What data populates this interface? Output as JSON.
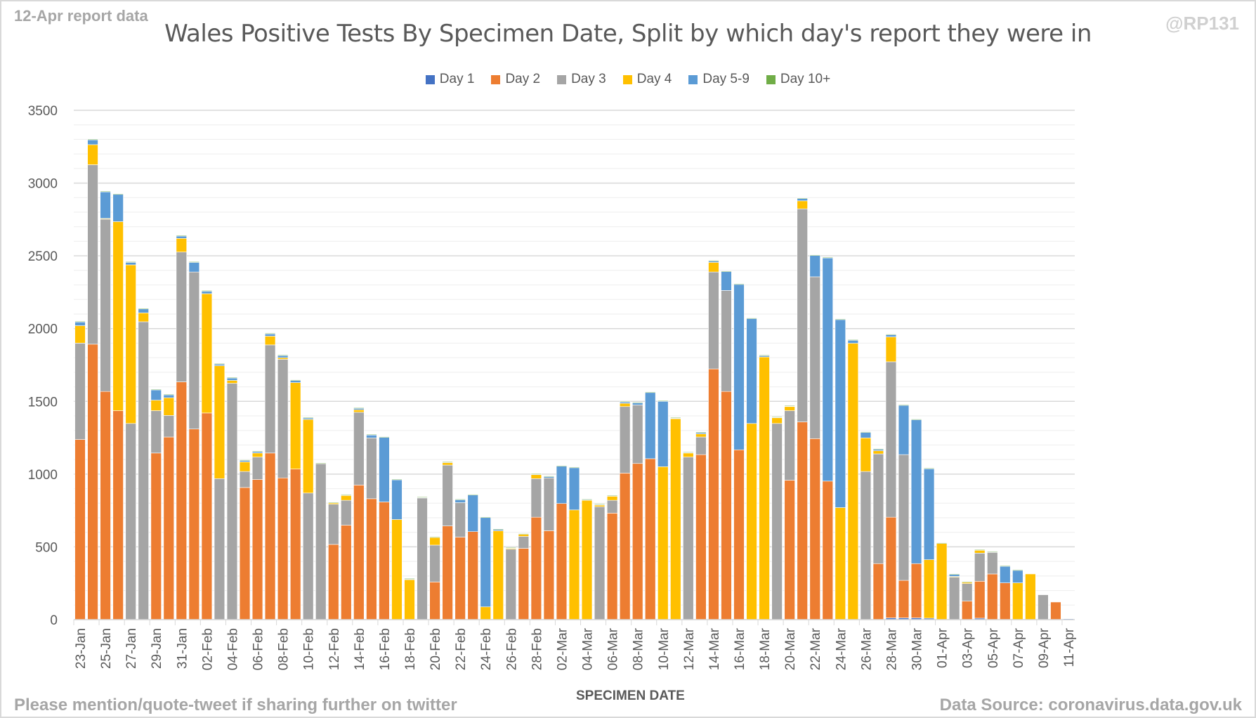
{
  "header": {
    "report_label": "12-Apr report data",
    "handle": "@RP131",
    "title": "Wales Positive Tests By Specimen Date, Split by which day's report they were in"
  },
  "footer": {
    "left": "Please mention/quote-tweet if sharing further on twitter",
    "right": "Data Source: coronavirus.data.gov.uk"
  },
  "colors": {
    "Day 1": "#4472c4",
    "Day 2": "#ed7d31",
    "Day 3": "#a5a5a5",
    "Day 4": "#ffc000",
    "Day 5-9": "#5b9bd5",
    "Day 10+": "#70ad47"
  },
  "chart_data": {
    "type": "bar",
    "stacked": true,
    "title": "Wales Positive Tests By Specimen Date, Split by which day's report they were in",
    "xlabel": "SPECIMEN DATE",
    "ylabel": "",
    "ylim": [
      0,
      3500
    ],
    "yticks": [
      0,
      500,
      1000,
      1500,
      2000,
      2500,
      3000,
      3500
    ],
    "grid": true,
    "legend_position": "top",
    "legend": [
      "Day 1",
      "Day 2",
      "Day 3",
      "Day 4",
      "Day 5-9",
      "Day 10+"
    ],
    "categories": [
      "23-Jan",
      "24-Jan",
      "25-Jan",
      "26-Jan",
      "27-Jan",
      "28-Jan",
      "29-Jan",
      "30-Jan",
      "31-Jan",
      "01-Feb",
      "02-Feb",
      "03-Feb",
      "04-Feb",
      "05-Feb",
      "06-Feb",
      "07-Feb",
      "08-Feb",
      "09-Feb",
      "10-Feb",
      "11-Feb",
      "12-Feb",
      "13-Feb",
      "14-Feb",
      "15-Feb",
      "16-Feb",
      "17-Feb",
      "18-Feb",
      "19-Feb",
      "20-Feb",
      "21-Feb",
      "22-Feb",
      "23-Feb",
      "24-Feb",
      "25-Feb",
      "26-Feb",
      "27-Feb",
      "28-Feb",
      "01-Mar",
      "02-Mar",
      "03-Mar",
      "04-Mar",
      "05-Mar",
      "06-Mar",
      "07-Mar",
      "08-Mar",
      "09-Mar",
      "10-Mar",
      "11-Mar",
      "12-Mar",
      "13-Mar",
      "14-Mar",
      "15-Mar",
      "16-Mar",
      "17-Mar",
      "18-Mar",
      "19-Mar",
      "20-Mar",
      "21-Mar",
      "22-Mar",
      "23-Mar",
      "24-Mar",
      "25-Mar",
      "26-Mar",
      "27-Mar",
      "28-Mar",
      "29-Mar",
      "30-Mar",
      "31-Mar",
      "01-Apr",
      "02-Apr",
      "03-Apr",
      "04-Apr",
      "05-Apr",
      "06-Apr",
      "07-Apr",
      "08-Apr",
      "09-Apr",
      "10-Apr",
      "11-Apr"
    ],
    "tick_labels": [
      "23-Jan",
      "25-Jan",
      "27-Jan",
      "29-Jan",
      "31-Jan",
      "02-Feb",
      "04-Feb",
      "06-Feb",
      "08-Feb",
      "10-Feb",
      "12-Feb",
      "14-Feb",
      "16-Feb",
      "18-Feb",
      "20-Feb",
      "22-Feb",
      "24-Feb",
      "26-Feb",
      "28-Feb",
      "02-Mar",
      "04-Mar",
      "06-Mar",
      "08-Mar",
      "10-Mar",
      "12-Mar",
      "14-Mar",
      "16-Mar",
      "18-Mar",
      "20-Mar",
      "22-Mar",
      "24-Mar",
      "26-Mar",
      "28-Mar",
      "30-Mar",
      "01-Apr",
      "03-Apr",
      "05-Apr",
      "07-Apr",
      "09-Apr",
      "11-Apr"
    ],
    "series": [
      {
        "name": "Day 1",
        "values": [
          0,
          0,
          0,
          0,
          0,
          0,
          0,
          0,
          0,
          0,
          0,
          0,
          0,
          0,
          0,
          0,
          0,
          0,
          0,
          0,
          0,
          0,
          0,
          0,
          0,
          0,
          0,
          0,
          0,
          0,
          0,
          0,
          0,
          0,
          0,
          0,
          0,
          0,
          0,
          0,
          0,
          0,
          0,
          0,
          0,
          0,
          0,
          0,
          0,
          0,
          0,
          0,
          0,
          0,
          0,
          0,
          0,
          0,
          0,
          0,
          0,
          0,
          0,
          0,
          12,
          12,
          12,
          10,
          0,
          0,
          0,
          10,
          0,
          0,
          0,
          0,
          0,
          0,
          6
        ]
      },
      {
        "name": "Day 2",
        "values": [
          1238,
          1893,
          1568,
          1436,
          0,
          0,
          1145,
          1255,
          1634,
          1310,
          1420,
          0,
          0,
          908,
          963,
          1145,
          974,
          1035,
          0,
          0,
          517,
          649,
          925,
          831,
          809,
          0,
          0,
          0,
          259,
          644,
          567,
          605,
          0,
          0,
          0,
          490,
          704,
          611,
          798,
          0,
          0,
          0,
          732,
          1007,
          1073,
          1106,
          0,
          0,
          0,
          1134,
          1723,
          1568,
          1167,
          0,
          0,
          0,
          958,
          1359,
          1244,
          952,
          0,
          0,
          0,
          385,
          692,
          258,
          373,
          0,
          0,
          0,
          127,
          254,
          314,
          253,
          0,
          0,
          0,
          121,
          0
        ]
      },
      {
        "name": "Day 3",
        "values": [
          662,
          1233,
          1184,
          0,
          1348,
          2047,
          291,
          148,
          892,
          1079,
          0,
          969,
          1624,
          110,
          154,
          743,
          815,
          0,
          870,
          1073,
          276,
          171,
          500,
          418,
          0,
          0,
          0,
          836,
          253,
          418,
          237,
          0,
          0,
          0,
          484,
          82,
          265,
          363,
          0,
          0,
          0,
          776,
          88,
          457,
          402,
          0,
          0,
          0,
          1117,
          121,
          666,
          694,
          0,
          0,
          0,
          1348,
          478,
          1464,
          1112,
          0,
          0,
          0,
          1018,
          754,
          1068,
          864,
          0,
          0,
          0,
          292,
          121,
          193,
          148,
          0,
          0,
          0,
          171,
          0,
          0
        ]
      },
      {
        "name": "Day 4",
        "values": [
          120,
          138,
          5,
          1299,
          1090,
          61,
          72,
          122,
          94,
          0,
          820,
          776,
          20,
          66,
          28,
          60,
          11,
          594,
          506,
          3,
          11,
          33,
          17,
          0,
          0,
          688,
          275,
          0,
          55,
          17,
          0,
          0,
          88,
          611,
          6,
          17,
          27,
          0,
          0,
          754,
          820,
          11,
          28,
          22,
          0,
          0,
          1051,
          1381,
          28,
          22,
          66,
          0,
          0,
          1348,
          1805,
          39,
          28,
          55,
          0,
          0,
          770,
          1899,
          231,
          22,
          171,
          0,
          0,
          402,
          523,
          5,
          11,
          22,
          0,
          0,
          253,
          314,
          0,
          0,
          0
        ]
      },
      {
        "name": "Day 5-9",
        "values": [
          27,
          33,
          182,
          187,
          17,
          27,
          72,
          21,
          16,
          66,
          17,
          11,
          17,
          11,
          11,
          17,
          16,
          16,
          11,
          0,
          0,
          6,
          11,
          22,
          446,
          275,
          6,
          6,
          0,
          5,
          22,
          254,
          616,
          11,
          5,
          0,
          6,
          11,
          259,
          292,
          6,
          6,
          5,
          11,
          16,
          457,
          451,
          6,
          5,
          11,
          11,
          132,
          1139,
          722,
          11,
          5,
          5,
          17,
          148,
          1536,
          1294,
          22,
          39,
          11,
          16,
          341,
          991,
          627,
          0,
          16,
          0,
          0,
          6,
          116,
          88,
          0,
          0,
          0,
          0
        ]
      },
      {
        "name": "Day 10+",
        "values": [
          3,
          5,
          5,
          5,
          5,
          5,
          3,
          3,
          5,
          5,
          5,
          4,
          4,
          3,
          3,
          3,
          3,
          3,
          3,
          2,
          2,
          2,
          3,
          2,
          2,
          2,
          2,
          2,
          2,
          2,
          2,
          2,
          2,
          2,
          2,
          2,
          2,
          2,
          2,
          2,
          2,
          2,
          2,
          3,
          3,
          2,
          3,
          2,
          2,
          2,
          3,
          2,
          2,
          3,
          2,
          2,
          2,
          3,
          3,
          2,
          2,
          3,
          3,
          3,
          3,
          2,
          2,
          2,
          5,
          2,
          2,
          2,
          2,
          2,
          2,
          0,
          0,
          0,
          0
        ]
      }
    ]
  }
}
